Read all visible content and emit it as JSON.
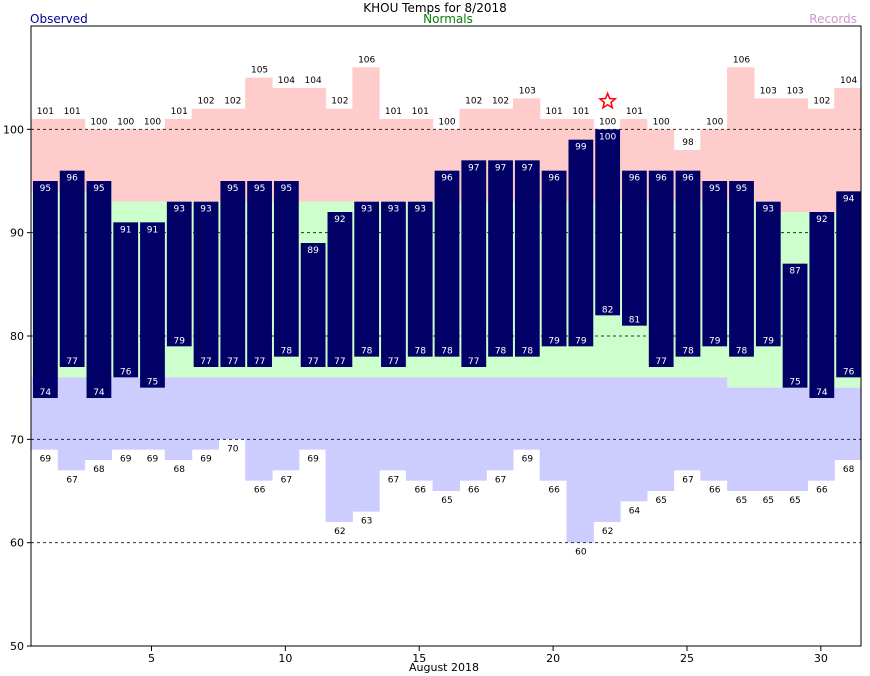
{
  "header": {
    "title": "KHOU Temps for 8/2018",
    "left_label": "Observed",
    "center_label": "Normals",
    "right_label": "Records"
  },
  "colors": {
    "observed": "#000066",
    "normal_band": "#ccffcc",
    "record_high": "#ffcccc",
    "record_low": "#ccccff",
    "title": "#000000",
    "observed_label": "#000099",
    "normals_label": "#008000",
    "records_label": "#cc99cc",
    "record_marker": "#ff0000"
  },
  "chart_data": {
    "type": "bar",
    "title": "KHOU Temps for 8/2018",
    "xlabel": "August 2018",
    "ylabel": "",
    "ylim": [
      50,
      110
    ],
    "yticks": [
      50,
      60,
      70,
      80,
      90,
      100
    ],
    "xticks": [
      5,
      10,
      15,
      20,
      25,
      30
    ],
    "grid": "dashed horizontal at 60, 70, 80, 90, 100",
    "days": [
      1,
      2,
      3,
      4,
      5,
      6,
      7,
      8,
      9,
      10,
      11,
      12,
      13,
      14,
      15,
      16,
      17,
      18,
      19,
      20,
      21,
      22,
      23,
      24,
      25,
      26,
      27,
      28,
      29,
      30,
      31
    ],
    "series": [
      {
        "name": "Observed",
        "role": "observed_high",
        "values": [
          95,
          96,
          95,
          91,
          91,
          93,
          93,
          95,
          95,
          95,
          89,
          92,
          93,
          93,
          93,
          96,
          97,
          97,
          97,
          96,
          99,
          100,
          96,
          96,
          96,
          95,
          95,
          93,
          87,
          92,
          94
        ]
      },
      {
        "name": "Observed",
        "role": "observed_low",
        "values": [
          74,
          77,
          74,
          76,
          75,
          79,
          77,
          77,
          77,
          78,
          77,
          77,
          78,
          77,
          78,
          78,
          77,
          78,
          78,
          79,
          79,
          82,
          81,
          77,
          78,
          79,
          78,
          79,
          75,
          74,
          76
        ]
      },
      {
        "name": "Normals",
        "role": "normal_high",
        "values": [
          94,
          94,
          94,
          93,
          93,
          93,
          93,
          93,
          93,
          93,
          93,
          93,
          93,
          93,
          93,
          93,
          93,
          93,
          93,
          93,
          93,
          93,
          93,
          93,
          93,
          93,
          93,
          93,
          92,
          92,
          92
        ]
      },
      {
        "name": "Normals",
        "role": "normal_low",
        "values": [
          76,
          76,
          76,
          76,
          76,
          76,
          76,
          76,
          76,
          76,
          76,
          76,
          76,
          76,
          76,
          76,
          76,
          76,
          76,
          76,
          76,
          76,
          76,
          76,
          76,
          76,
          75,
          75,
          75,
          75,
          75
        ]
      },
      {
        "name": "Records",
        "role": "record_high",
        "values": [
          101,
          101,
          100,
          100,
          100,
          101,
          102,
          102,
          105,
          104,
          104,
          102,
          106,
          101,
          101,
          100,
          102,
          102,
          103,
          101,
          101,
          100,
          101,
          100,
          98,
          100,
          106,
          103,
          103,
          102,
          104
        ]
      },
      {
        "name": "Records",
        "role": "record_low",
        "values": [
          69,
          67,
          68,
          69,
          69,
          68,
          69,
          70,
          66,
          67,
          69,
          62,
          63,
          67,
          66,
          65,
          66,
          67,
          69,
          66,
          60,
          62,
          64,
          65,
          67,
          66,
          65,
          65,
          65,
          66,
          68
        ]
      }
    ],
    "record_marker_days": [
      22
    ]
  }
}
